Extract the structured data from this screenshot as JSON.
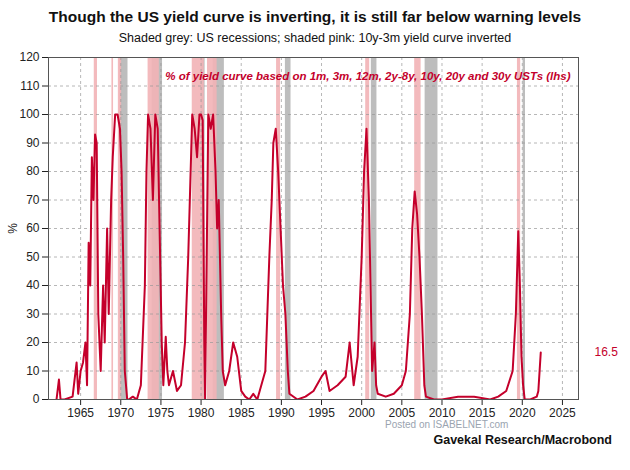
{
  "chart_data": {
    "type": "line",
    "title": "Though the US yield curve is inverting, it is still far below warning levels",
    "subtitle": "Shaded grey: US recessions; shaded pink: 10y-3m yield curve inverted",
    "y_label": "%",
    "source": "Gavekal Research/Macrobond",
    "watermark": "Posted on ISABELNET.com",
    "grid": true,
    "xlim": [
      1961,
      2027
    ],
    "xticks": [
      1965,
      1970,
      1975,
      1980,
      1985,
      1990,
      1995,
      2000,
      2005,
      2010,
      2015,
      2020,
      2025
    ],
    "ylim": [
      0,
      120
    ],
    "yticks": [
      0,
      10,
      20,
      30,
      40,
      50,
      60,
      70,
      80,
      90,
      100,
      110,
      120
    ],
    "recessions": [
      [
        1969.9,
        1970.9
      ],
      [
        1973.9,
        1975.2
      ],
      [
        1980.0,
        1980.5
      ],
      [
        1981.5,
        1982.9
      ],
      [
        1990.5,
        1991.2
      ],
      [
        2001.2,
        2001.9
      ],
      [
        2007.9,
        2009.5
      ],
      [
        2020.1,
        2020.4
      ]
    ],
    "inversions": [
      [
        1966.7,
        1967.1
      ],
      [
        1968.9,
        1969.1
      ],
      [
        1969.7,
        1970.1
      ],
      [
        1973.4,
        1974.8
      ],
      [
        1978.9,
        1980.4
      ],
      [
        1980.8,
        1982.0
      ],
      [
        1989.4,
        1989.9
      ],
      [
        2000.5,
        2001.0
      ],
      [
        2006.6,
        2007.4
      ],
      [
        2019.4,
        2019.8
      ]
    ],
    "end_label": "16.5",
    "x": [
      1962.0,
      1962.3,
      1962.5,
      1963.0,
      1964.0,
      1964.5,
      1964.7,
      1965.0,
      1965.3,
      1965.6,
      1965.8,
      1966.0,
      1966.2,
      1966.4,
      1966.6,
      1966.8,
      1967.0,
      1967.2,
      1967.5,
      1967.8,
      1968.0,
      1968.3,
      1968.5,
      1968.8,
      1969.0,
      1969.3,
      1969.6,
      1969.9,
      1970.1,
      1970.3,
      1970.5,
      1970.8,
      1971.0,
      1971.5,
      1972.0,
      1972.5,
      1973.0,
      1973.2,
      1973.4,
      1973.7,
      1974.0,
      1974.3,
      1974.6,
      1974.9,
      1975.1,
      1975.3,
      1975.6,
      1975.8,
      1976.0,
      1976.5,
      1977.0,
      1977.5,
      1978.0,
      1978.4,
      1978.7,
      1978.9,
      1979.2,
      1979.5,
      1979.8,
      1980.0,
      1980.2,
      1980.4,
      1980.5,
      1980.7,
      1980.9,
      1981.2,
      1981.5,
      1981.8,
      1982.0,
      1982.2,
      1982.5,
      1982.7,
      1983.0,
      1983.5,
      1984.0,
      1984.5,
      1985.0,
      1985.5,
      1986.0,
      1986.5,
      1987.0,
      1987.5,
      1988.0,
      1988.5,
      1988.8,
      1989.0,
      1989.3,
      1989.6,
      1989.9,
      1990.2,
      1990.5,
      1990.8,
      1991.0,
      1992.0,
      1993.0,
      1994.0,
      1995.0,
      1995.5,
      1996.0,
      1997.0,
      1998.0,
      1998.5,
      1999.0,
      1999.5,
      2000.0,
      2000.3,
      2000.6,
      2000.9,
      2001.1,
      2001.3,
      2001.6,
      2001.8,
      2002.0,
      2003.0,
      2004.0,
      2005.0,
      2005.5,
      2006.0,
      2006.3,
      2006.6,
      2006.9,
      2007.2,
      2007.5,
      2007.8,
      2008.0,
      2009.0,
      2010.0,
      2012.0,
      2014.0,
      2016.0,
      2017.0,
      2018.0,
      2018.8,
      2019.2,
      2019.5,
      2019.7,
      2019.9,
      2020.1,
      2020.3,
      2021.0,
      2021.8,
      2022.0,
      2022.3
    ],
    "series": [
      {
        "name": "% of yield curve based on 1m, 3m, 12m, 2y-8y, 10y, 20y and 30y USTs (lhs)",
        "color": "#c4002b",
        "values": [
          0,
          7,
          0,
          0,
          1,
          13,
          2,
          10,
          13,
          20,
          5,
          55,
          40,
          85,
          70,
          93,
          90,
          30,
          10,
          40,
          20,
          60,
          30,
          70,
          85,
          100,
          100,
          95,
          80,
          50,
          10,
          0,
          0,
          1,
          0,
          5,
          40,
          80,
          100,
          95,
          70,
          100,
          95,
          50,
          20,
          5,
          22,
          10,
          5,
          10,
          3,
          5,
          20,
          50,
          80,
          100,
          95,
          85,
          100,
          100,
          98,
          20,
          0,
          50,
          100,
          95,
          100,
          80,
          60,
          70,
          30,
          10,
          5,
          10,
          20,
          15,
          3,
          1,
          0,
          2,
          0,
          5,
          10,
          50,
          70,
          90,
          95,
          80,
          60,
          40,
          30,
          10,
          2,
          0,
          1,
          3,
          8,
          10,
          3,
          5,
          8,
          20,
          5,
          15,
          50,
          80,
          95,
          70,
          40,
          10,
          20,
          5,
          2,
          1,
          2,
          5,
          10,
          30,
          60,
          73,
          65,
          50,
          30,
          5,
          1,
          0,
          0,
          1,
          1,
          0,
          1,
          3,
          10,
          30,
          59,
          40,
          15,
          5,
          0,
          0,
          1,
          3,
          16.5
        ]
      }
    ]
  }
}
